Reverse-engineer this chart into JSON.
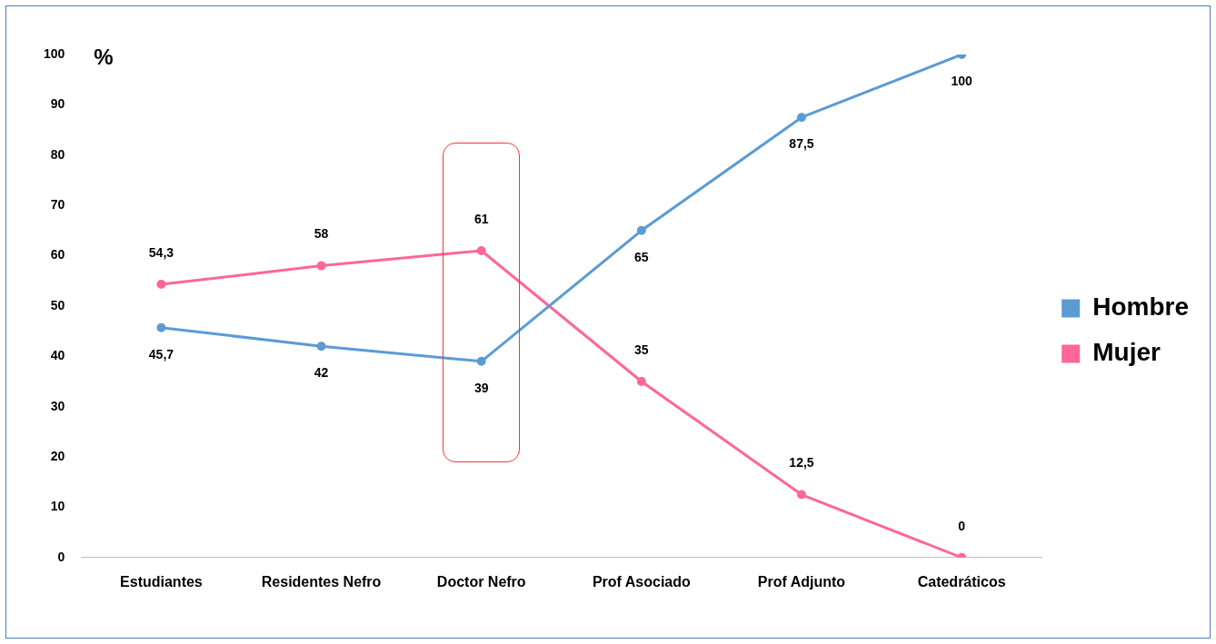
{
  "chart_data": {
    "type": "line",
    "ylabel": "%",
    "categories": [
      "Estudiantes",
      "Residentes Nefro",
      "Doctor Nefro",
      "Prof Asociado",
      "Prof Adjunto",
      "Catedráticos"
    ],
    "series": [
      {
        "name": "Hombre",
        "color": "#5b9bd5",
        "values": [
          45.7,
          42,
          39,
          65,
          87.5,
          100
        ],
        "value_labels": [
          "45,7",
          "42",
          "39",
          "65",
          "87,5",
          "100"
        ]
      },
      {
        "name": "Mujer",
        "color": "#ff6699",
        "values": [
          54.3,
          58,
          61,
          35,
          12.5,
          0
        ],
        "value_labels": [
          "54,3",
          "58",
          "61",
          "35",
          "12,5",
          "0"
        ]
      }
    ],
    "ylim": [
      0,
      100
    ],
    "yticks": [
      0,
      10,
      20,
      30,
      40,
      50,
      60,
      70,
      80,
      90,
      100
    ],
    "grid": false,
    "legend": "right",
    "marker": "circle",
    "line_style": "solid"
  }
}
